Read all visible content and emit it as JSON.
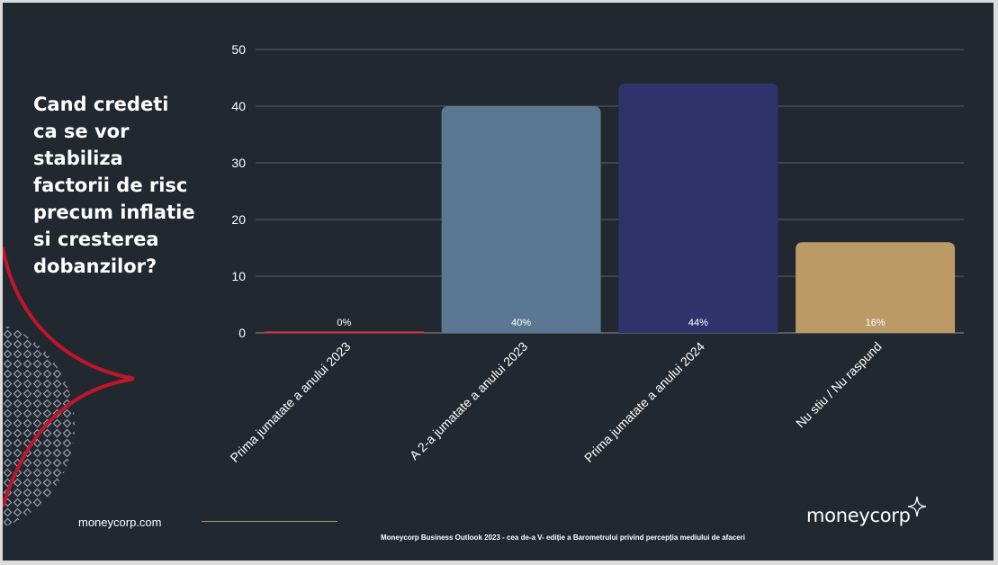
{
  "slide": {
    "question": "Cand credeti ca se vor stabiliza factorii de risc precum inflatie si cresterea dobanzilor?",
    "footer_url": "moneycorp.com",
    "footer_note": "Moneycorp Business Outlook 2023 - cea de-a V- ediție a Barometrului privind percepția mediului de afaceri",
    "logo_text": "moneycorp",
    "colors": {
      "background": "#222830",
      "accent_red": "#c0162c",
      "gold": "#b59a6a",
      "grid": "#5a6068"
    }
  },
  "chart_data": {
    "type": "bar",
    "title": "",
    "xlabel": "",
    "ylabel": "",
    "ylim": [
      0,
      50
    ],
    "yticks": [
      0,
      10,
      20,
      30,
      40,
      50
    ],
    "grid": true,
    "categories": [
      "Prima jumatate a anului 2023",
      "A 2-a jumatate a anului 2023",
      "Prima jumatate a anului 2024",
      "Nu stiu / Nu raspund"
    ],
    "values": [
      0,
      40,
      44,
      16
    ],
    "data_labels": [
      "0%",
      "40%",
      "44%",
      "16%"
    ],
    "bar_colors": [
      "#d9394a",
      "#5a7892",
      "#30336b",
      "#bb9a68"
    ]
  }
}
